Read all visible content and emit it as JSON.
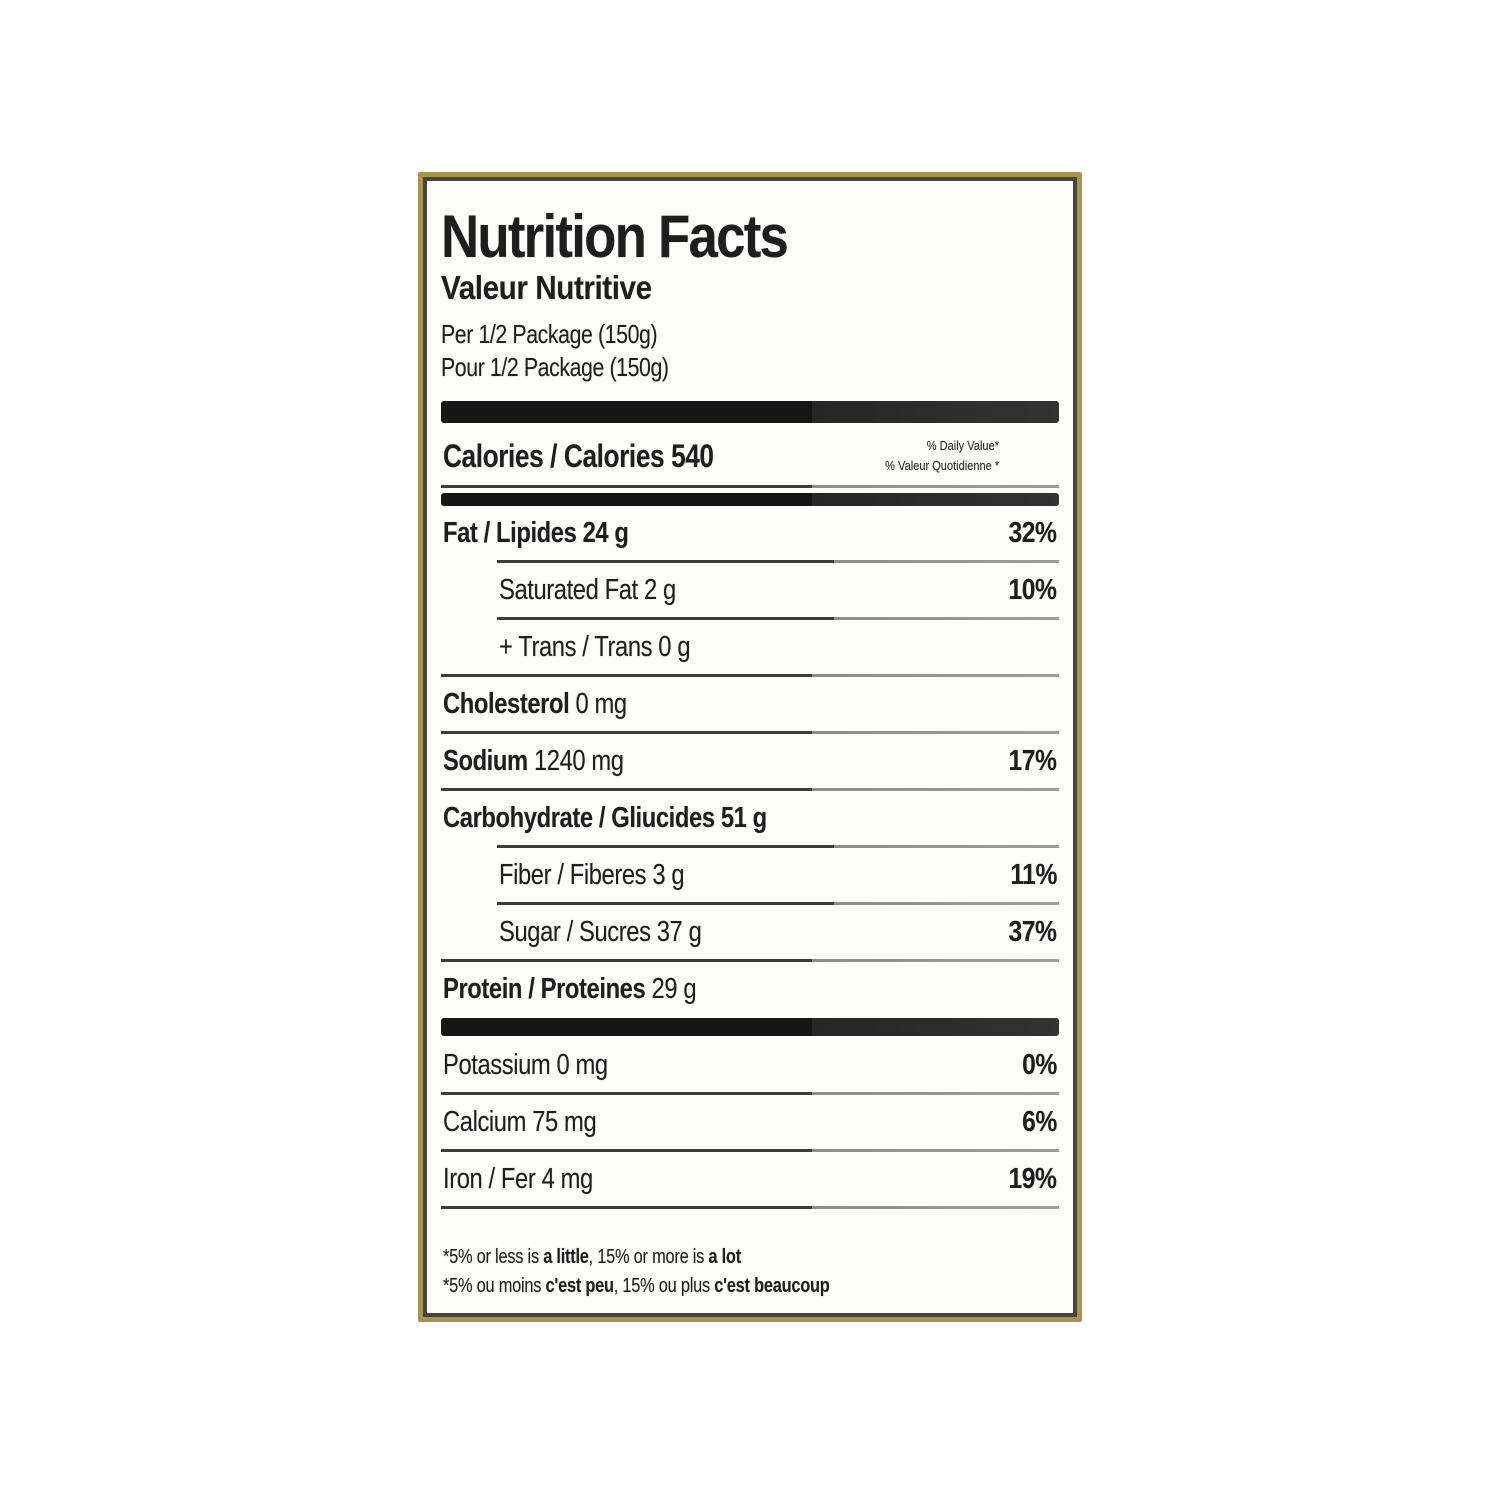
{
  "colors": {
    "frame_gold": "#a8944d",
    "frame_dark": "#47443b",
    "bar_black": "#1a1a1a",
    "line_gray": "#3c3c3c",
    "text": "#1e1e1e",
    "background": "#fdfdfc"
  },
  "label": {
    "title_en": "Nutrition Facts",
    "title_fr": "Valeur Nutritive",
    "serving_en": "Per 1/2 Package (150g)",
    "serving_fr": "Pour 1/2 Package (150g)",
    "calories_line": "Calories / Calories 540",
    "daily_value_note_en": "% Daily Value*",
    "daily_value_note_fr": "% Valeur Quotidienne *",
    "rows": [
      {
        "bold": "Fat / Lipides 24 g",
        "rest": "",
        "dv": "32%",
        "indent": false,
        "sep": "indent"
      },
      {
        "bold": "",
        "rest": "Saturated Fat 2 g",
        "dv": "10%",
        "indent": true,
        "sep": "indent"
      },
      {
        "bold": "",
        "rest": "+ Trans / Trans 0 g",
        "dv": "",
        "indent": true,
        "sep": "full"
      },
      {
        "bold": "Cholesterol",
        "rest": " 0 mg",
        "dv": "",
        "indent": false,
        "sep": "full"
      },
      {
        "bold": "Sodium",
        "rest": " 1240 mg",
        "dv": "17%",
        "indent": false,
        "sep": "full"
      },
      {
        "bold": "Carbohydrate / Gliucides 51 g",
        "rest": "",
        "dv": "",
        "indent": false,
        "sep": "indent"
      },
      {
        "bold": "",
        "rest": "Fiber / Fiberes 3 g",
        "dv": "11%",
        "indent": true,
        "sep": "indent"
      },
      {
        "bold": "",
        "rest": "Sugar / Sucres 37 g",
        "dv": "37%",
        "indent": true,
        "sep": "full"
      },
      {
        "bold": "Protein / Proteines",
        "rest": " 29 g",
        "dv": "",
        "indent": false,
        "sep": "bar"
      },
      {
        "bold": "",
        "rest": "Potassium 0 mg",
        "dv": "0%",
        "indent": false,
        "sep": "full"
      },
      {
        "bold": "",
        "rest": "Calcium 75 mg",
        "dv": "6%",
        "indent": false,
        "sep": "full"
      },
      {
        "bold": "",
        "rest": "Iron / Fer 4 mg",
        "dv": "19%",
        "indent": false,
        "sep": "full"
      }
    ],
    "footnote": {
      "line1": [
        {
          "text": "*5% or less is "
        },
        {
          "text": "a little",
          "bold": true
        },
        {
          "text": ", 15% or more is "
        },
        {
          "text": "a lot",
          "bold": true
        }
      ],
      "line2": [
        {
          "text": "*5% ou moins "
        },
        {
          "text": "c'est peu",
          "bold": true
        },
        {
          "text": ", 15% ou plus "
        },
        {
          "text": "c'est beaucoup",
          "bold": true
        }
      ]
    }
  }
}
